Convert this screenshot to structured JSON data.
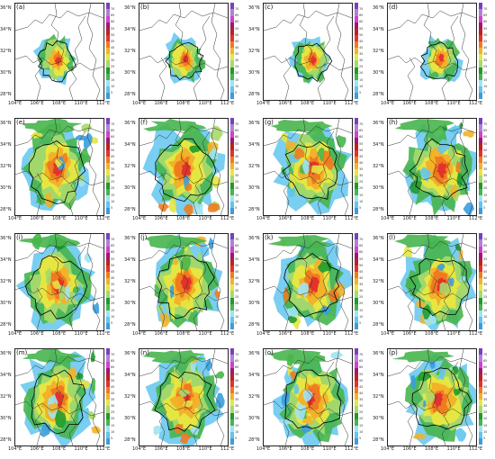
{
  "figure": {
    "panels": [
      "(a)",
      "(b)",
      "(c)",
      "(d)",
      "(e)",
      "(f)",
      "(g)",
      "(h)",
      "(i)",
      "(j)",
      "(k)",
      "(l)",
      "(m)",
      "(n)",
      "(o)",
      "(p)"
    ],
    "x_ticks": [
      "104°E",
      "106°E",
      "108°E",
      "110°E",
      "112°E"
    ],
    "y_ticks": [
      "36°N",
      "34°N",
      "32°N",
      "30°N",
      "28°N"
    ],
    "colorbar": {
      "levels": [
        "5",
        "10",
        "15",
        "20",
        "25",
        "30",
        "35",
        "40",
        "45",
        "50",
        "55",
        "60",
        "65",
        "70"
      ],
      "colors": [
        "#3a9dde",
        "#62c5ee",
        "#9ee3f3",
        "#47b54d",
        "#1f9a2e",
        "#a7d96b",
        "#e6e642",
        "#f2b229",
        "#ef7b1f",
        "#e3322c",
        "#c11f1f",
        "#a0186e",
        "#d53fcf",
        "#b17fd8",
        "#7a3fbf"
      ]
    }
  }
}
